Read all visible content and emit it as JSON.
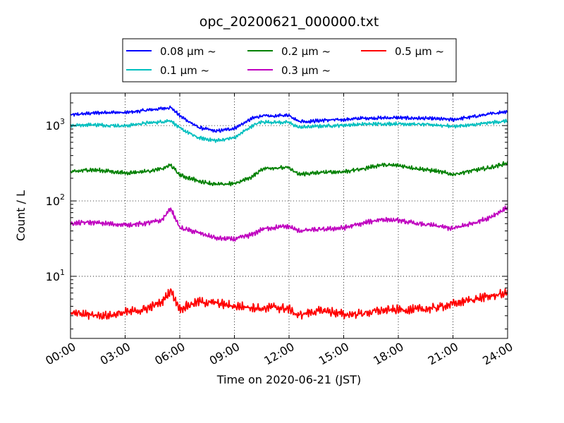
{
  "chart_data": {
    "type": "line",
    "title": "opc_20200621_000000.txt",
    "xlabel": "Time on 2020-06-21 (JST)",
    "ylabel": "Count / L",
    "x_unit": "hour",
    "xlim": [
      0,
      24
    ],
    "ylim": [
      1.5,
      2700
    ],
    "yscale": "log",
    "grid": true,
    "legend_position": "top-center",
    "x_ticks": [
      {
        "value": 0,
        "label": "00:00"
      },
      {
        "value": 3,
        "label": "03:00"
      },
      {
        "value": 6,
        "label": "06:00"
      },
      {
        "value": 9,
        "label": "09:00"
      },
      {
        "value": 12,
        "label": "12:00"
      },
      {
        "value": 15,
        "label": "15:00"
      },
      {
        "value": 18,
        "label": "18:00"
      },
      {
        "value": 21,
        "label": "21:00"
      },
      {
        "value": 24,
        "label": "24:00"
      }
    ],
    "y_ticks": [
      {
        "value": 10,
        "base": "10",
        "exp": "1"
      },
      {
        "value": 100,
        "base": "10",
        "exp": "2"
      },
      {
        "value": 1000,
        "base": "10",
        "exp": "3"
      }
    ],
    "x": [
      0,
      1,
      2,
      3,
      4,
      5,
      5.5,
      6,
      7,
      8,
      9,
      10,
      10.5,
      11,
      12,
      12.5,
      13,
      14,
      15,
      16,
      17,
      18,
      19,
      20,
      21,
      22,
      23,
      24
    ],
    "series": [
      {
        "name": "0.08 μm ~",
        "color": "#0000ff",
        "noise": 0.05,
        "values": [
          1380,
          1450,
          1500,
          1480,
          1580,
          1680,
          1750,
          1350,
          950,
          840,
          920,
          1250,
          1350,
          1330,
          1380,
          1150,
          1130,
          1180,
          1200,
          1250,
          1260,
          1270,
          1250,
          1230,
          1200,
          1300,
          1420,
          1550
        ]
      },
      {
        "name": "0.1 μm ~",
        "color": "#00bfbf",
        "noise": 0.05,
        "values": [
          1000,
          1030,
          1010,
          990,
          1070,
          1120,
          1170,
          920,
          690,
          630,
          690,
          1000,
          1120,
          1110,
          1100,
          950,
          960,
          990,
          1010,
          1040,
          1050,
          1060,
          1040,
          1020,
          980,
          1010,
          1090,
          1150
        ]
      },
      {
        "name": "0.2 μm ~",
        "color": "#008000",
        "noise": 0.06,
        "values": [
          240,
          260,
          250,
          235,
          245,
          265,
          300,
          220,
          185,
          165,
          170,
          210,
          265,
          275,
          275,
          225,
          230,
          240,
          245,
          265,
          300,
          295,
          270,
          250,
          225,
          250,
          275,
          320
        ]
      },
      {
        "name": "0.3 μm ~",
        "color": "#bf00bf",
        "noise": 0.07,
        "values": [
          50,
          52,
          50,
          48,
          50,
          55,
          80,
          44,
          38,
          32,
          31,
          36,
          42,
          44,
          46,
          40,
          41,
          42,
          44,
          50,
          57,
          55,
          50,
          47,
          43,
          50,
          60,
          82
        ]
      },
      {
        "name": "0.5 μm ~",
        "color": "#ff0000",
        "noise": 0.13,
        "values": [
          3.2,
          3.1,
          3.0,
          3.3,
          3.6,
          4.5,
          6.5,
          3.7,
          4.6,
          4.4,
          4.0,
          3.9,
          3.7,
          3.9,
          3.7,
          3.0,
          3.3,
          3.5,
          3.1,
          3.2,
          3.5,
          3.6,
          3.6,
          3.8,
          4.3,
          4.9,
          5.4,
          6.0
        ]
      }
    ]
  }
}
